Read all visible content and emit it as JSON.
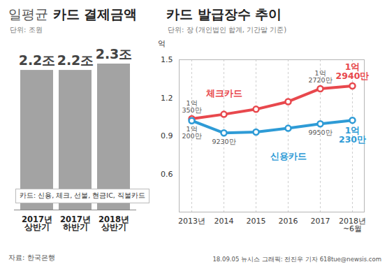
{
  "source": "자료: 한국은행",
  "credit": "18.09.05 뉴시스 그래픽: 전진우 기자 618tue@newsis.com",
  "chart_data": [
    {
      "type": "bar",
      "title": "일평균 카드 결제금액",
      "subtitle": "단위: 조원",
      "note": "카드: 신용, 체크, 선불, 현금IC, 직불카드",
      "categories": [
        "2017년\n상반기",
        "2017년\n하반기",
        "2018년\n상반기"
      ],
      "values": [
        2.2,
        2.2,
        2.3
      ],
      "value_labels": [
        "2.2조",
        "2.2조",
        "2.3조"
      ],
      "color": "#a3a3a3",
      "ylim": [
        0,
        2.3
      ],
      "data_labels": true,
      "tick_labels": "x"
    },
    {
      "type": "line",
      "title": "카드 발급장수 추이",
      "subtitle": "단위: 장 (개인법인 합계, 기간말 기준)",
      "y_label": "억",
      "categories": [
        "2013년",
        "2014",
        "2015",
        "2016",
        "2017",
        "2018년\n~6월"
      ],
      "series": [
        {
          "name": "체크카드",
          "color": "#e8484d",
          "values": [
            1.035,
            1.07,
            1.11,
            1.17,
            1.272,
            1.294
          ],
          "value_labels": [
            "1억\n350만",
            null,
            null,
            null,
            "1억\n2720만",
            "1억\n2940만"
          ]
        },
        {
          "name": "신용카드",
          "color": "#2e9bd6",
          "values": [
            1.02,
            0.923,
            0.93,
            0.96,
            0.995,
            1.023
          ],
          "value_labels": [
            "1억\n200만",
            "9230만",
            null,
            null,
            "9950만",
            "1억\n230만"
          ]
        }
      ],
      "ylim": [
        0.3,
        1.5
      ],
      "yticks": [
        0.6,
        0.9,
        1.2,
        1.5
      ],
      "grid": true,
      "marker": "circle",
      "data_labels": true
    }
  ]
}
